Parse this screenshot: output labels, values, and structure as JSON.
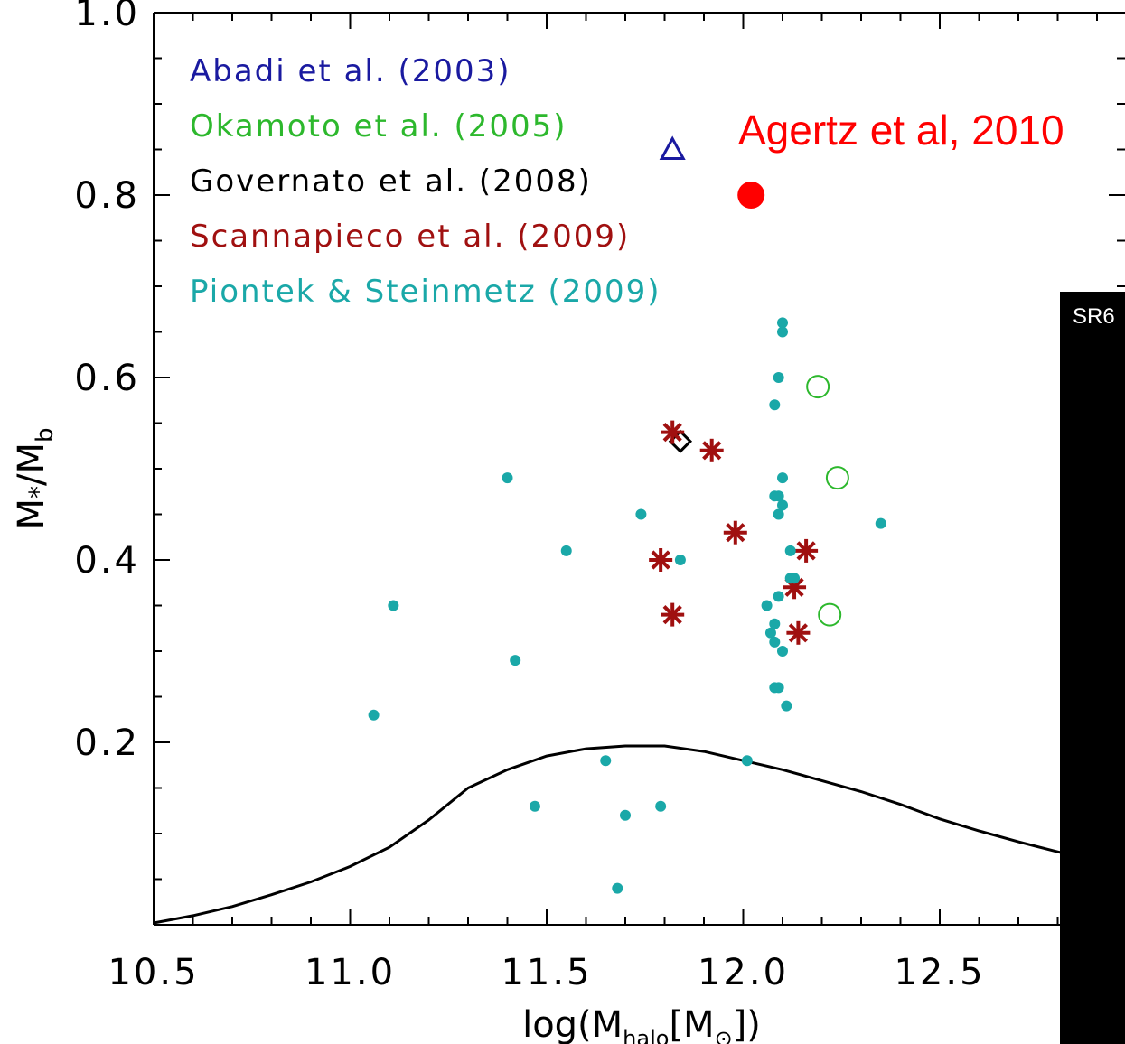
{
  "chart_data": {
    "type": "scatter",
    "xlim": [
      10.5,
      13.0
    ],
    "ylim": [
      0.0,
      1.0
    ],
    "x_ticks": [
      "10.5",
      "11.0",
      "11.5",
      "12.0",
      "12.5"
    ],
    "x_tick_values": [
      10.5,
      11.0,
      11.5,
      12.0,
      12.5
    ],
    "y_ticks": [
      "0.2",
      "0.4",
      "0.6",
      "0.8",
      "1.0"
    ],
    "y_tick_values": [
      0.2,
      0.4,
      0.6,
      0.8,
      1.0
    ],
    "xlabel_parts": {
      "pre": "log(M",
      "sub1": "halo",
      "mid": "[M",
      "sub2": "⊙",
      "post": "])"
    },
    "ylabel_parts": {
      "pre": "M",
      "sub1": "*",
      "mid": "/M",
      "sub2": "b"
    },
    "legend": [
      {
        "label": "Abadi et al. (2003)",
        "color": "#1a1aa0"
      },
      {
        "label": "Okamoto et al. (2005)",
        "color": "#2db82d"
      },
      {
        "label": "Governato et al. (2008)",
        "color": "#000000"
      },
      {
        "label": "Scannapieco et al. (2009)",
        "color": "#a01010"
      },
      {
        "label": "Piontek & Steinmetz (2009)",
        "color": "#1aa8a8"
      }
    ],
    "annotation": {
      "text": "Agertz et al, 2010",
      "color": "#ff0000"
    },
    "series": [
      {
        "name": "Abadi et al. (2003)",
        "marker": "triangle",
        "color": "#1a1aa0",
        "points": [
          [
            11.82,
            0.85
          ]
        ]
      },
      {
        "name": "Okamoto et al. (2005)",
        "marker": "open-circle",
        "color": "#2db82d",
        "points": [
          [
            12.19,
            0.59
          ],
          [
            12.24,
            0.49
          ],
          [
            12.22,
            0.34
          ]
        ]
      },
      {
        "name": "Governato et al. (2008)",
        "marker": "diamond",
        "color": "#000000",
        "points": [
          [
            11.84,
            0.53
          ]
        ]
      },
      {
        "name": "Scannapieco et al. (2009)",
        "marker": "asterisk",
        "color": "#a01010",
        "points": [
          [
            11.82,
            0.54
          ],
          [
            11.92,
            0.52
          ],
          [
            11.98,
            0.43
          ],
          [
            11.79,
            0.4
          ],
          [
            11.82,
            0.34
          ],
          [
            12.16,
            0.41
          ],
          [
            12.13,
            0.37
          ],
          [
            12.14,
            0.32
          ]
        ]
      },
      {
        "name": "Piontek & Steinmetz (2009)",
        "marker": "filled-circle",
        "color": "#1aa8a8",
        "points": [
          [
            12.1,
            0.66
          ],
          [
            12.1,
            0.65
          ],
          [
            12.09,
            0.6
          ],
          [
            12.08,
            0.57
          ],
          [
            12.1,
            0.49
          ],
          [
            12.08,
            0.47
          ],
          [
            12.09,
            0.47
          ],
          [
            12.1,
            0.46
          ],
          [
            12.09,
            0.45
          ],
          [
            12.35,
            0.44
          ],
          [
            11.4,
            0.49
          ],
          [
            11.74,
            0.45
          ],
          [
            11.55,
            0.41
          ],
          [
            11.84,
            0.4
          ],
          [
            12.12,
            0.41
          ],
          [
            12.12,
            0.38
          ],
          [
            12.13,
            0.38
          ],
          [
            12.09,
            0.36
          ],
          [
            12.06,
            0.35
          ],
          [
            12.08,
            0.33
          ],
          [
            12.07,
            0.32
          ],
          [
            12.08,
            0.31
          ],
          [
            12.1,
            0.3
          ],
          [
            11.11,
            0.35
          ],
          [
            11.42,
            0.29
          ],
          [
            12.08,
            0.26
          ],
          [
            12.09,
            0.26
          ],
          [
            12.11,
            0.24
          ],
          [
            11.06,
            0.23
          ],
          [
            12.01,
            0.18
          ],
          [
            11.65,
            0.18
          ],
          [
            11.47,
            0.13
          ],
          [
            11.79,
            0.13
          ],
          [
            11.7,
            0.12
          ],
          [
            11.68,
            0.04
          ]
        ]
      },
      {
        "name": "Agertz et al, 2010",
        "marker": "filled-circle-large",
        "color": "#ff0000",
        "points": [
          [
            12.02,
            0.8
          ]
        ]
      }
    ],
    "curve": {
      "x": [
        10.5,
        10.6,
        10.7,
        10.8,
        10.9,
        11.0,
        11.1,
        11.2,
        11.3,
        11.4,
        11.5,
        11.6,
        11.7,
        11.8,
        11.9,
        12.0,
        12.1,
        12.2,
        12.3,
        12.4,
        12.5,
        12.6,
        12.7,
        12.8,
        12.9,
        13.0
      ],
      "y": [
        0.002,
        0.01,
        0.02,
        0.033,
        0.047,
        0.064,
        0.085,
        0.115,
        0.15,
        0.17,
        0.185,
        0.193,
        0.196,
        0.196,
        0.19,
        0.18,
        0.17,
        0.158,
        0.146,
        0.132,
        0.116,
        0.103,
        0.091,
        0.08,
        0.07,
        0.06
      ]
    },
    "grid": false,
    "legend_placement": "top-left"
  },
  "overlay_panel": {
    "text": "SR6"
  }
}
